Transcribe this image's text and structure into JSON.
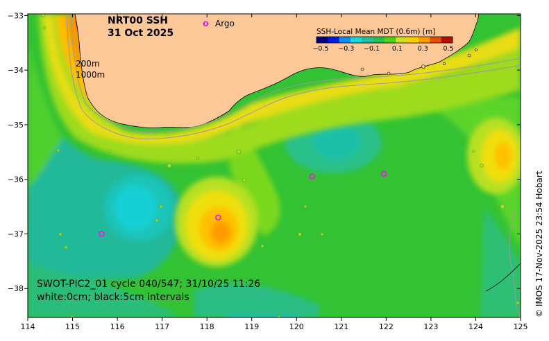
{
  "title": {
    "line1": "NRT00 SSH",
    "line2": "31 Oct 2025"
  },
  "legend": {
    "argo_marker": "o",
    "argo_label": "Argo"
  },
  "colorbar": {
    "title": "SSH-Local Mean MDT (0.6m) [m]",
    "tick_labels": [
      "−0.5",
      "−0.3",
      "−0.1",
      "0.1",
      "0.3",
      "0.5"
    ],
    "colors": [
      "#00007a",
      "#0019e0",
      "#0a8cf0",
      "#17d6d9",
      "#1fbfa0",
      "#22c050",
      "#4cd010",
      "#c8e020",
      "#f8d000",
      "#ff9a00",
      "#e05000",
      "#b01000"
    ]
  },
  "isobaths": {
    "shallow": "200m",
    "deep": "1000m"
  },
  "axes": {
    "lon_ticks": [
      "114",
      "115",
      "116",
      "117",
      "118",
      "119",
      "120",
      "121",
      "122",
      "123",
      "124",
      "125"
    ],
    "lat_ticks": [
      "−33",
      "−34",
      "−35",
      "−36",
      "−37",
      "−38"
    ]
  },
  "annotation": {
    "line1": "SWOT-PIC2_01 cycle 040/547; 31/10/25 11:26",
    "line2": "white:0cm; black:5cm intervals"
  },
  "credit": "© IMOS 17-Nov-2025 23:54 Hobart",
  "colors": {
    "land": "#fcc897",
    "ocean_base": "#33c233",
    "argo": "#e020e0"
  },
  "argo_floats": [
    {
      "lon": 118.25,
      "lat": -36.7
    },
    {
      "lon": 115.65,
      "lat": -37.0
    },
    {
      "lon": 120.35,
      "lat": -35.95
    },
    {
      "lon": 121.95,
      "lat": -35.9
    }
  ]
}
